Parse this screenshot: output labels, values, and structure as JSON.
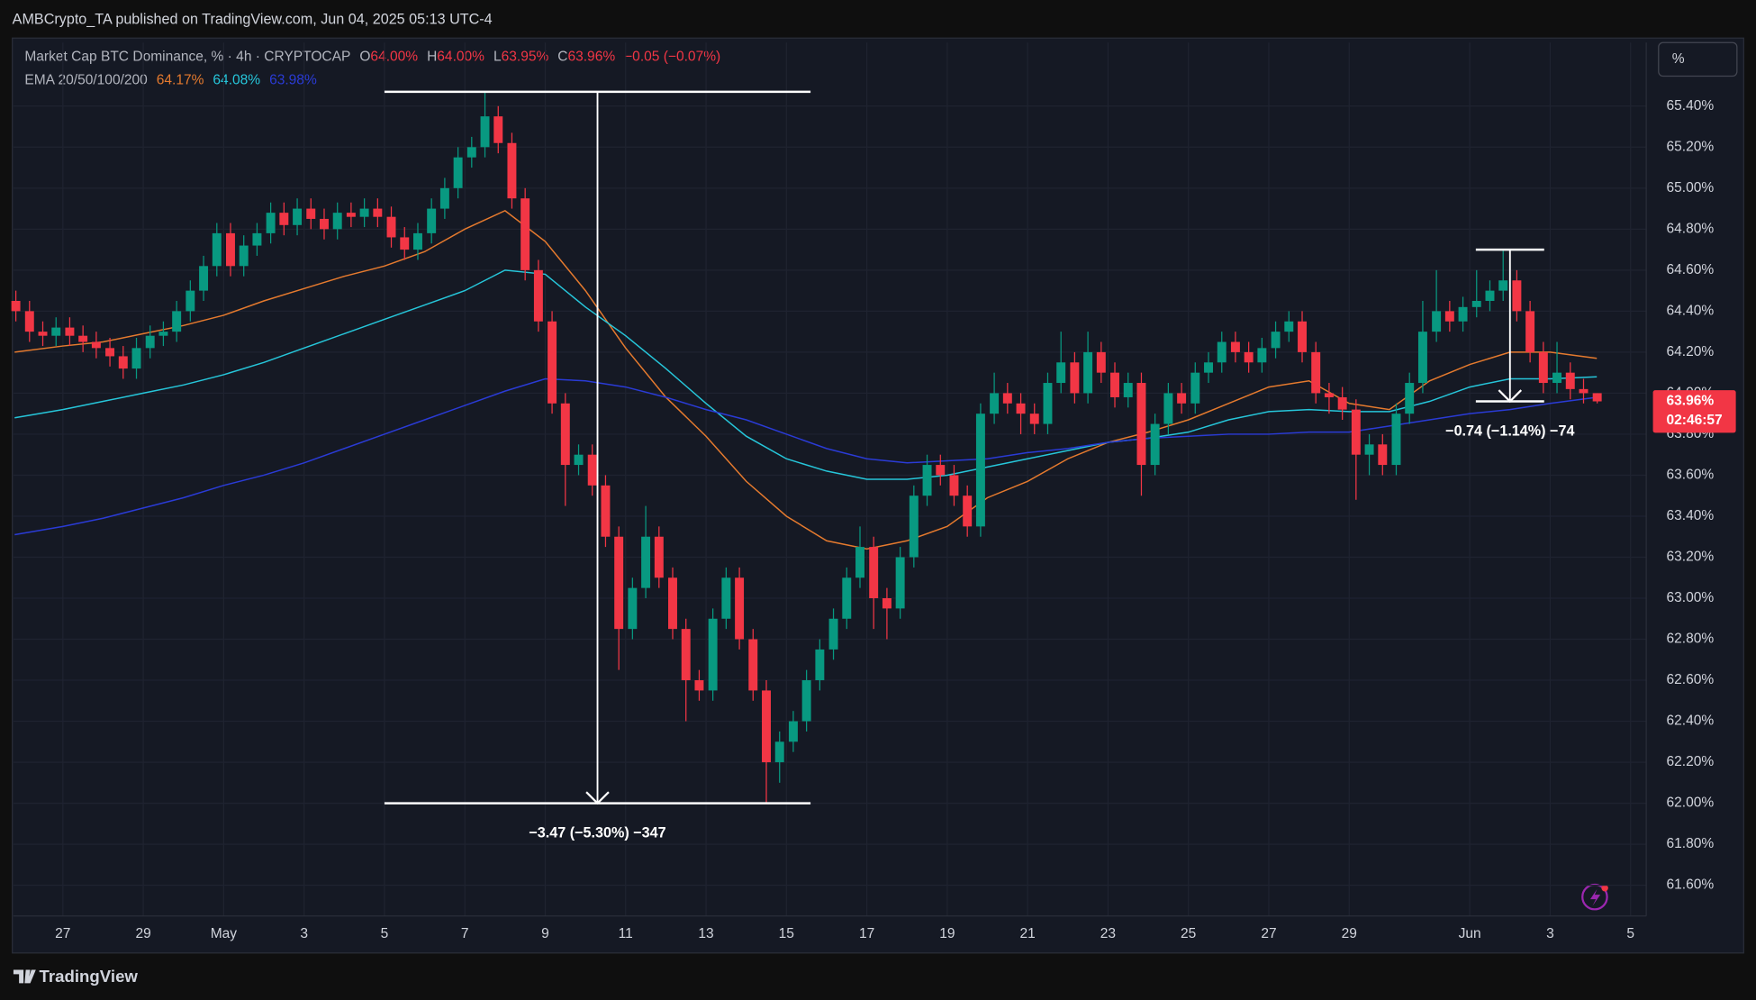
{
  "chart_data": {
    "type": "candlestick",
    "publisher": "AMBCrypto_TA published on TradingView.com, Jun 04, 2025 05:13 UTC-4",
    "title": "Market Cap BTC Dominance, % · 4h · CRYPTOCAP",
    "ohlc_legend": [
      {
        "key": "O",
        "value": "64.00%"
      },
      {
        "key": "H",
        "value": "64.00%"
      },
      {
        "key": "L",
        "value": "63.95%"
      },
      {
        "key": "C",
        "value": "63.96%"
      }
    ],
    "change": "−0.05 (−0.07%)",
    "indicator": {
      "label": "EMA 20/50/100/200",
      "values": [
        "64.17%",
        "64.08%",
        "63.98%"
      ]
    },
    "scale_button": "%",
    "brand": "TradingView",
    "up_color": "#089981",
    "down_color": "#f23645",
    "grid": true,
    "xlim": [
      25.77,
      66.39
    ],
    "ylim": [
      61.45,
      65.71
    ],
    "xticks": [
      27,
      29,
      {
        "value": 31,
        "label": "May"
      },
      {
        "value": 33,
        "label": "3"
      },
      {
        "value": 35,
        "label": "5"
      },
      {
        "value": 37,
        "label": "7"
      },
      {
        "value": 39,
        "label": "9"
      },
      {
        "value": 41,
        "label": "11"
      },
      {
        "value": 43,
        "label": "13"
      },
      {
        "value": 45,
        "label": "15"
      },
      {
        "value": 47,
        "label": "17"
      },
      {
        "value": 49,
        "label": "19"
      },
      {
        "value": 51,
        "label": "21"
      },
      {
        "value": 53,
        "label": "23"
      },
      {
        "value": 55,
        "label": "25"
      },
      {
        "value": 57,
        "label": "27"
      },
      {
        "value": 59,
        "label": "29"
      },
      {
        "value": 62,
        "label": "Jun"
      },
      {
        "value": 64,
        "label": "3"
      },
      {
        "value": 66,
        "label": "5"
      }
    ],
    "yticks": [
      {
        "value": 61.6,
        "label": "61.60%"
      },
      {
        "value": 61.8,
        "label": "61.80%"
      },
      {
        "value": 62.0,
        "label": "62.00%"
      },
      {
        "value": 62.2,
        "label": "62.20%"
      },
      {
        "value": 62.4,
        "label": "62.40%"
      },
      {
        "value": 62.6,
        "label": "62.60%"
      },
      {
        "value": 62.8,
        "label": "62.80%"
      },
      {
        "value": 63.0,
        "label": "63.00%"
      },
      {
        "value": 63.2,
        "label": "63.20%"
      },
      {
        "value": 63.4,
        "label": "63.40%"
      },
      {
        "value": 63.6,
        "label": "63.60%"
      },
      {
        "value": 63.8,
        "label": "63.80%"
      },
      {
        "value": 64.0,
        "label": "64.00%"
      },
      {
        "value": 64.2,
        "label": "64.20%"
      },
      {
        "value": 64.4,
        "label": "64.40%"
      },
      {
        "value": 64.6,
        "label": "64.60%"
      },
      {
        "value": 64.8,
        "label": "64.80%"
      },
      {
        "value": 65.0,
        "label": "65.00%"
      },
      {
        "value": 65.2,
        "label": "65.20%"
      },
      {
        "value": 65.4,
        "label": "65.40%"
      }
    ],
    "candles": {
      "x": [
        25.83,
        26.17,
        26.5,
        26.83,
        27.17,
        27.5,
        27.83,
        28.17,
        28.5,
        28.83,
        29.17,
        29.5,
        29.83,
        30.17,
        30.5,
        30.83,
        31.17,
        31.5,
        31.83,
        32.17,
        32.5,
        32.83,
        33.17,
        33.5,
        33.83,
        34.17,
        34.5,
        34.83,
        35.17,
        35.5,
        35.83,
        36.17,
        36.5,
        36.83,
        37.17,
        37.5,
        37.83,
        38.17,
        38.5,
        38.83,
        39.17,
        39.5,
        39.83,
        40.17,
        40.5,
        40.83,
        41.17,
        41.5,
        41.83,
        42.17,
        42.5,
        42.83,
        43.17,
        43.5,
        43.83,
        44.17,
        44.5,
        44.83,
        45.17,
        45.5,
        45.83,
        46.17,
        46.5,
        46.83,
        47.17,
        47.5,
        47.83,
        48.17,
        48.5,
        48.83,
        49.17,
        49.5,
        49.83,
        50.17,
        50.5,
        50.83,
        51.17,
        51.5,
        51.83,
        52.17,
        52.5,
        52.83,
        53.17,
        53.5,
        53.83,
        54.17,
        54.5,
        54.83,
        55.17,
        55.5,
        55.83,
        56.17,
        56.5,
        56.83,
        57.17,
        57.5,
        57.83,
        58.17,
        58.5,
        58.83,
        59.17,
        59.5,
        59.83,
        60.17,
        60.5,
        60.83,
        61.17,
        61.5,
        61.83,
        62.17,
        62.5,
        62.83,
        63.17,
        63.5,
        63.83,
        64.17,
        64.5,
        64.83,
        65.17
      ],
      "open": [
        64.45,
        64.4,
        64.3,
        64.28,
        64.32,
        64.28,
        64.25,
        64.22,
        64.18,
        64.12,
        64.22,
        64.28,
        64.3,
        64.4,
        64.5,
        64.62,
        64.78,
        64.62,
        64.72,
        64.78,
        64.88,
        64.82,
        64.9,
        64.85,
        64.8,
        64.88,
        64.86,
        64.9,
        64.86,
        64.76,
        64.7,
        64.78,
        64.9,
        65.0,
        65.15,
        65.2,
        65.35,
        65.22,
        64.95,
        64.6,
        64.35,
        63.95,
        63.65,
        63.7,
        63.55,
        63.3,
        62.85,
        63.05,
        63.3,
        63.1,
        62.85,
        62.6,
        62.55,
        62.9,
        63.1,
        62.8,
        62.55,
        62.2,
        62.3,
        62.4,
        62.6,
        62.75,
        62.9,
        63.1,
        63.25,
        63.0,
        62.95,
        63.2,
        63.5,
        63.65,
        63.6,
        63.5,
        63.35,
        63.9,
        64.0,
        63.95,
        63.9,
        63.85,
        64.05,
        64.15,
        64.0,
        64.2,
        64.1,
        63.98,
        64.05,
        63.65,
        63.85,
        64.0,
        63.95,
        64.1,
        64.15,
        64.25,
        64.2,
        64.15,
        64.22,
        64.3,
        64.35,
        64.2,
        64.0,
        63.98,
        63.92,
        63.7,
        63.75,
        63.65,
        63.9,
        64.05,
        64.3,
        64.4,
        64.35,
        64.42,
        64.45,
        64.5,
        64.55,
        64.4,
        64.2,
        64.05,
        64.1,
        64.02,
        64.0
      ],
      "high": [
        64.5,
        64.45,
        64.35,
        64.37,
        64.37,
        64.33,
        64.3,
        64.27,
        64.23,
        64.27,
        64.33,
        64.35,
        64.45,
        64.55,
        64.67,
        64.83,
        64.83,
        64.77,
        64.83,
        64.93,
        64.93,
        64.95,
        64.95,
        64.9,
        64.93,
        64.93,
        64.95,
        64.95,
        64.91,
        64.81,
        64.83,
        64.95,
        65.05,
        65.2,
        65.25,
        65.47,
        65.4,
        65.27,
        65.0,
        64.65,
        64.4,
        64.0,
        63.75,
        63.75,
        63.6,
        63.35,
        63.1,
        63.45,
        63.35,
        63.15,
        62.9,
        62.65,
        62.95,
        63.15,
        63.15,
        62.85,
        62.6,
        62.35,
        62.45,
        62.65,
        62.8,
        62.95,
        63.15,
        63.35,
        63.3,
        63.05,
        63.25,
        63.55,
        63.7,
        63.7,
        63.65,
        63.55,
        63.95,
        64.1,
        64.05,
        64.0,
        63.95,
        64.1,
        64.3,
        64.2,
        64.3,
        64.25,
        64.15,
        64.1,
        64.1,
        63.9,
        64.05,
        64.05,
        64.15,
        64.2,
        64.3,
        64.3,
        64.25,
        64.27,
        64.35,
        64.4,
        64.4,
        64.25,
        64.05,
        64.03,
        63.97,
        63.8,
        63.8,
        63.95,
        64.1,
        64.45,
        64.6,
        64.45,
        64.47,
        64.6,
        64.55,
        64.7,
        64.6,
        64.45,
        64.25,
        64.25,
        64.15,
        64.07,
        64.0
      ],
      "low": [
        64.35,
        64.25,
        64.23,
        64.23,
        64.23,
        64.2,
        64.17,
        64.13,
        64.07,
        64.07,
        64.17,
        64.23,
        64.25,
        64.35,
        64.45,
        64.57,
        64.57,
        64.57,
        64.67,
        64.73,
        64.77,
        64.77,
        64.8,
        64.75,
        64.75,
        64.81,
        64.81,
        64.81,
        64.71,
        64.65,
        64.65,
        64.73,
        64.85,
        64.95,
        65.1,
        65.15,
        65.17,
        64.9,
        64.55,
        64.3,
        63.9,
        63.45,
        63.6,
        63.5,
        63.25,
        62.65,
        62.8,
        63.0,
        63.05,
        62.8,
        62.4,
        62.5,
        62.5,
        62.85,
        62.75,
        62.5,
        62.0,
        62.1,
        62.25,
        62.35,
        62.55,
        62.7,
        62.85,
        63.05,
        62.85,
        62.8,
        62.9,
        63.15,
        63.45,
        63.55,
        63.45,
        63.3,
        63.3,
        63.85,
        63.9,
        63.8,
        63.8,
        63.8,
        64.0,
        63.95,
        63.95,
        64.05,
        63.93,
        63.93,
        63.5,
        63.6,
        63.8,
        63.9,
        63.9,
        64.05,
        64.1,
        64.15,
        64.1,
        64.1,
        64.17,
        64.25,
        64.15,
        63.95,
        63.9,
        63.87,
        63.48,
        63.6,
        63.6,
        63.6,
        63.85,
        64.0,
        64.25,
        64.3,
        64.3,
        64.37,
        64.4,
        64.45,
        64.35,
        64.15,
        64.0,
        64.0,
        63.97,
        63.95,
        63.95
      ],
      "close": [
        64.4,
        64.3,
        64.28,
        64.32,
        64.28,
        64.25,
        64.22,
        64.18,
        64.12,
        64.22,
        64.28,
        64.3,
        64.4,
        64.5,
        64.62,
        64.78,
        64.62,
        64.72,
        64.78,
        64.88,
        64.82,
        64.9,
        64.85,
        64.8,
        64.88,
        64.86,
        64.9,
        64.86,
        64.76,
        64.7,
        64.78,
        64.9,
        65.0,
        65.15,
        65.2,
        65.35,
        65.22,
        64.95,
        64.6,
        64.35,
        63.95,
        63.65,
        63.7,
        63.55,
        63.3,
        62.85,
        63.05,
        63.3,
        63.1,
        62.85,
        62.6,
        62.55,
        62.9,
        63.1,
        62.8,
        62.55,
        62.2,
        62.3,
        62.4,
        62.6,
        62.75,
        62.9,
        63.1,
        63.25,
        63.0,
        62.95,
        63.2,
        63.5,
        63.65,
        63.6,
        63.5,
        63.35,
        63.9,
        64.0,
        63.95,
        63.9,
        63.85,
        64.05,
        64.15,
        64.0,
        64.2,
        64.1,
        63.98,
        64.05,
        63.65,
        63.85,
        64.0,
        63.95,
        64.1,
        64.15,
        64.25,
        64.2,
        64.15,
        64.22,
        64.3,
        64.35,
        64.2,
        64.0,
        63.98,
        63.92,
        63.7,
        63.75,
        63.65,
        63.9,
        64.05,
        64.3,
        64.4,
        64.35,
        64.42,
        64.45,
        64.5,
        64.55,
        64.4,
        64.2,
        64.05,
        64.1,
        64.02,
        64.0,
        63.96
      ]
    },
    "lines": [
      {
        "color": "#e57a2e",
        "x": [
          25.8,
          27,
          28,
          29,
          30,
          31,
          32,
          33,
          34,
          35,
          36,
          37,
          38,
          39,
          40,
          41,
          42,
          43,
          44,
          45,
          46,
          47,
          48,
          49,
          50,
          51,
          52,
          53,
          54,
          55,
          56,
          57,
          58,
          59,
          60,
          61,
          62,
          63,
          64,
          65.16
        ],
        "values": [
          64.2,
          64.23,
          64.25,
          64.29,
          64.33,
          64.38,
          64.45,
          64.51,
          64.57,
          64.62,
          64.69,
          64.8,
          64.89,
          64.74,
          64.5,
          64.22,
          63.98,
          63.79,
          63.57,
          63.4,
          63.28,
          63.24,
          63.28,
          63.35,
          63.49,
          63.57,
          63.68,
          63.76,
          63.81,
          63.87,
          63.95,
          64.03,
          64.06,
          63.95,
          63.92,
          64.06,
          64.14,
          64.2,
          64.2,
          64.17
        ]
      },
      {
        "color": "#26c6da",
        "x": [
          25.8,
          27,
          28,
          29,
          30,
          31,
          32,
          33,
          34,
          35,
          36,
          37,
          38,
          39,
          40,
          41,
          42,
          43,
          44,
          45,
          46,
          47,
          48,
          49,
          50,
          51,
          52,
          53,
          54,
          55,
          56,
          57,
          58,
          59,
          60,
          61,
          62,
          63,
          64,
          65.16
        ],
        "values": [
          63.88,
          63.92,
          63.96,
          64.0,
          64.04,
          64.09,
          64.15,
          64.22,
          64.29,
          64.36,
          64.43,
          64.5,
          64.6,
          64.58,
          64.42,
          64.28,
          64.12,
          63.95,
          63.79,
          63.68,
          63.62,
          63.58,
          63.58,
          63.6,
          63.64,
          63.68,
          63.72,
          63.76,
          63.78,
          63.81,
          63.87,
          63.91,
          63.92,
          63.91,
          63.91,
          63.96,
          64.03,
          64.07,
          64.07,
          64.08
        ]
      },
      {
        "color": "#2a3bd6",
        "x": [
          25.8,
          27,
          28,
          29,
          30,
          31,
          32,
          33,
          34,
          35,
          36,
          37,
          38,
          39,
          40,
          41,
          42,
          43,
          44,
          45,
          46,
          47,
          48,
          49,
          50,
          51,
          52,
          53,
          54,
          55,
          56,
          57,
          58,
          59,
          60,
          61,
          62,
          63,
          64,
          65.16
        ],
        "values": [
          63.31,
          63.35,
          63.39,
          63.44,
          63.49,
          63.55,
          63.6,
          63.66,
          63.73,
          63.8,
          63.87,
          63.94,
          64.01,
          64.07,
          64.06,
          64.03,
          63.98,
          63.92,
          63.87,
          63.8,
          63.73,
          63.68,
          63.66,
          63.67,
          63.68,
          63.71,
          63.73,
          63.76,
          63.78,
          63.79,
          63.8,
          63.8,
          63.81,
          63.81,
          63.84,
          63.87,
          63.9,
          63.92,
          63.95,
          63.98
        ]
      }
    ],
    "measures": [
      {
        "x_range": [
          35,
          45.6
        ],
        "from": 65.47,
        "to": 62.0,
        "label": "−3.47 (−5.30%) −347"
      },
      {
        "x_range": [
          62.15,
          63.85
        ],
        "from": 64.7,
        "to": 63.96,
        "label": "−0.74 (−1.14%) −74"
      }
    ],
    "price_tag": {
      "value": 63.96,
      "label": "63.96%",
      "countdown": "02:46:57"
    }
  }
}
